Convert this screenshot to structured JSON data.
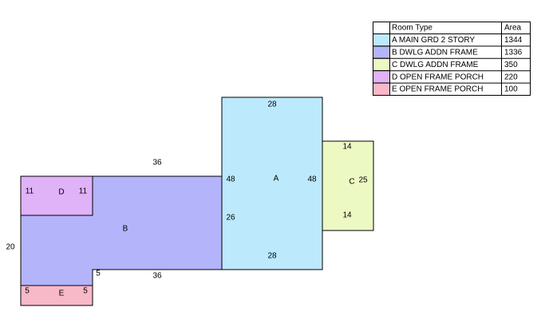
{
  "legend": {
    "headers": [
      "Room Type",
      "Area"
    ],
    "rows": [
      [
        "A MAIN GRD 2 STORY",
        1344
      ],
      [
        "B DWLG ADDN FRAME",
        1336
      ],
      [
        "C DWLG ADDN FRAME",
        350
      ],
      [
        "D OPEN FRAME PORCH",
        220
      ],
      [
        "E OPEN FRAME PORCH",
        100
      ]
    ]
  },
  "rooms": [
    {
      "name": "A",
      "dimensions": [
        28,
        48,
        48,
        26,
        28
      ]
    },
    {
      "name": "B",
      "dimensions": [
        36,
        20,
        36,
        5
      ]
    },
    {
      "name": "C",
      "dimensions": [
        14,
        25,
        14
      ]
    },
    {
      "name": "D",
      "dimensions": [
        11,
        11
      ]
    },
    {
      "name": "E",
      "dimensions": [
        5,
        5
      ]
    }
  ]
}
